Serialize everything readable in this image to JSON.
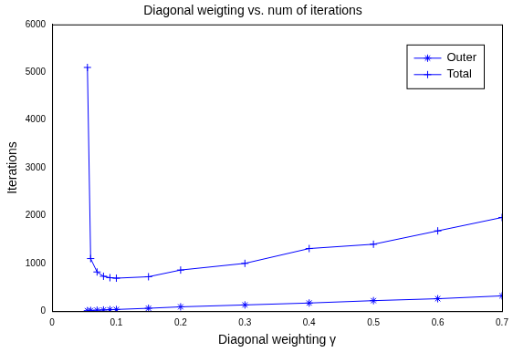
{
  "chart_data": {
    "type": "line",
    "title": "Diagonal weigting vs. num of iterations",
    "x_label": "Diagonal weighting γ",
    "y_label": "Iterations",
    "x": [
      0.055,
      0.06,
      0.07,
      0.08,
      0.09,
      0.1,
      0.15,
      0.2,
      0.3,
      0.4,
      0.5,
      0.6,
      0.7
    ],
    "series": [
      {
        "name": "Outer",
        "color": "#0000ff",
        "marker": "star",
        "line_style": "solid",
        "values": [
          10,
          15,
          20,
          25,
          30,
          35,
          60,
          90,
          130,
          170,
          220,
          260,
          320
        ]
      },
      {
        "name": "Total",
        "color": "#0000ff",
        "marker": "plus",
        "line_style": "solid",
        "values": [
          5100,
          1100,
          820,
          730,
          700,
          690,
          720,
          860,
          1000,
          1310,
          1400,
          1680,
          1960
        ]
      }
    ],
    "xlim": [
      0,
      0.7
    ],
    "xticks": [
      0,
      0.1,
      0.2,
      0.3,
      0.4,
      0.5,
      0.6,
      0.7
    ],
    "ylim": [
      0,
      6000
    ],
    "yticks": [
      0,
      1000,
      2000,
      3000,
      4000,
      5000,
      6000
    ],
    "grid": false,
    "legend": "upper right"
  }
}
